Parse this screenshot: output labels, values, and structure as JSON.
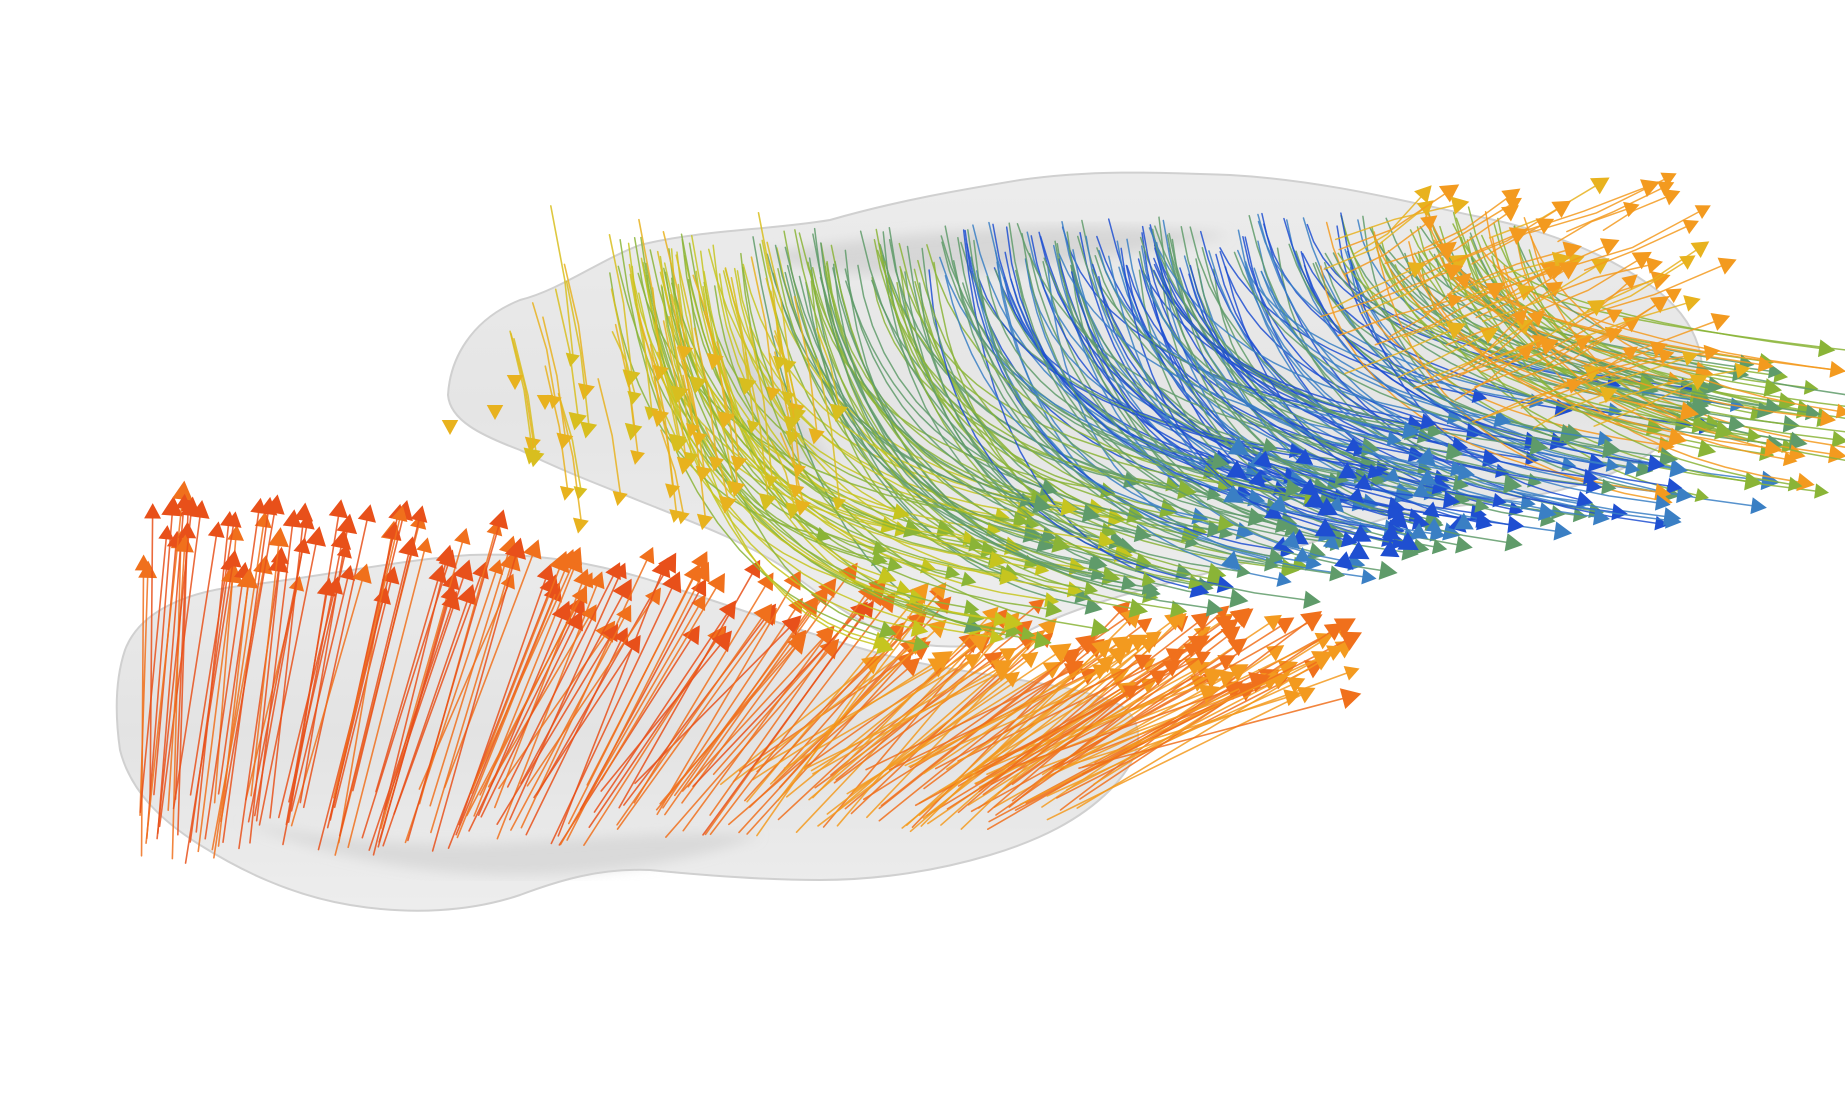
{
  "scene": {
    "kind": "3d-flow-visualization",
    "description_visible_text": "",
    "background_color": "#ffffff",
    "surface_color": "#d9d9d9",
    "colormap": [
      "#1f4fd1",
      "#3a7fc4",
      "#5f9b6a",
      "#8ab437",
      "#c6c51f",
      "#e8b21e",
      "#f39a1f",
      "#f0701c",
      "#e8501a"
    ],
    "lower_lobe": {
      "streamline_count": 260,
      "dominant_colors": [
        "#e8501a",
        "#f0701c",
        "#f39a1f"
      ]
    },
    "upper_lobe": {
      "streamline_count": 340,
      "dominant_colors": [
        "#c6c51f",
        "#8ab437",
        "#5f9b6a",
        "#3a7fc4",
        "#1f4fd1",
        "#f39a1f"
      ]
    },
    "seed": 7
  }
}
